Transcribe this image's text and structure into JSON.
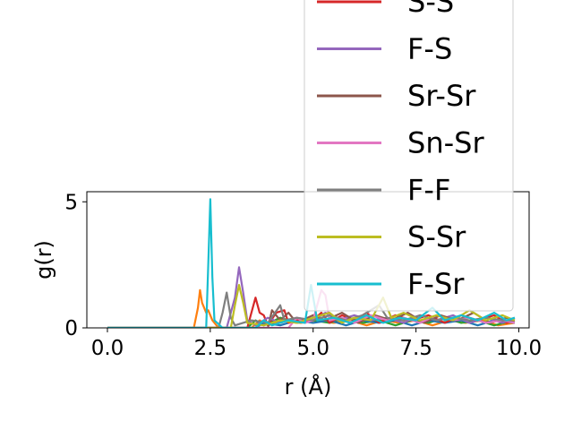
{
  "chart_data": {
    "type": "line",
    "xlabel": "r (Å)",
    "ylabel": "g(r)",
    "xlim": [
      -0.5,
      10.25
    ],
    "ylim": [
      0,
      5.4
    ],
    "xticks": [
      0.0,
      2.5,
      5.0,
      7.5,
      10.0
    ],
    "xtick_labels": [
      "0.0",
      "2.5",
      "5.0",
      "7.5",
      "10.0"
    ],
    "yticks": [
      0,
      5
    ],
    "ytick_labels": [
      "0",
      "5"
    ],
    "legend_position": "upper-right",
    "series": [
      {
        "name": "S-S",
        "color": "#d62728",
        "points": [
          [
            0,
            0
          ],
          [
            3.4,
            0
          ],
          [
            3.6,
            1.2
          ],
          [
            3.7,
            0.6
          ],
          [
            3.8,
            0.5
          ],
          [
            3.9,
            0.1
          ],
          [
            4.1,
            0.6
          ],
          [
            4.3,
            0.7
          ],
          [
            4.4,
            0.2
          ],
          [
            4.6,
            0.3
          ],
          [
            5.0,
            0.3
          ],
          [
            5.2,
            0.6
          ],
          [
            5.4,
            0.2
          ],
          [
            5.7,
            0.5
          ],
          [
            6.0,
            0.3
          ],
          [
            6.3,
            0.6
          ],
          [
            6.6,
            0.2
          ],
          [
            7.0,
            0.5
          ],
          [
            7.4,
            0.3
          ],
          [
            7.8,
            0.5
          ],
          [
            8.2,
            0.2
          ],
          [
            8.6,
            0.5
          ],
          [
            9.0,
            0.3
          ],
          [
            9.4,
            0.5
          ],
          [
            9.7,
            0.2
          ],
          [
            9.9,
            0.3
          ]
        ]
      },
      {
        "name": "F-S",
        "color": "#9467bd",
        "points": [
          [
            0,
            0
          ],
          [
            2.9,
            0
          ],
          [
            3.0,
            0.6
          ],
          [
            3.1,
            1.2
          ],
          [
            3.2,
            2.4
          ],
          [
            3.3,
            1.4
          ],
          [
            3.4,
            0.3
          ],
          [
            3.6,
            0.1
          ],
          [
            3.9,
            0.4
          ],
          [
            4.2,
            0.2
          ],
          [
            4.6,
            0.4
          ],
          [
            5.0,
            0.3
          ],
          [
            5.3,
            0.6
          ],
          [
            5.6,
            0.3
          ],
          [
            6.0,
            0.5
          ],
          [
            6.4,
            0.3
          ],
          [
            6.8,
            0.4
          ],
          [
            7.2,
            0.2
          ],
          [
            7.6,
            0.5
          ],
          [
            8.0,
            0.3
          ],
          [
            8.4,
            0.5
          ],
          [
            8.8,
            0.2
          ],
          [
            9.2,
            0.4
          ],
          [
            9.6,
            0.2
          ],
          [
            9.9,
            0.4
          ]
        ]
      },
      {
        "name": "Sr-Sr",
        "color": "#8c564b",
        "points": [
          [
            0,
            0
          ],
          [
            3.9,
            0
          ],
          [
            4.0,
            0.7
          ],
          [
            4.1,
            0.5
          ],
          [
            4.2,
            0.3
          ],
          [
            4.4,
            0.6
          ],
          [
            4.6,
            0.2
          ],
          [
            5.0,
            0.5
          ],
          [
            5.3,
            0.3
          ],
          [
            5.7,
            0.6
          ],
          [
            6.1,
            0.2
          ],
          [
            6.5,
            0.5
          ],
          [
            6.9,
            0.3
          ],
          [
            7.3,
            0.6
          ],
          [
            7.7,
            0.2
          ],
          [
            8.1,
            0.5
          ],
          [
            8.5,
            0.3
          ],
          [
            8.9,
            0.6
          ],
          [
            9.3,
            0.2
          ],
          [
            9.7,
            0.4
          ],
          [
            9.9,
            0.3
          ]
        ]
      },
      {
        "name": "Sn-Sr",
        "color": "#e377c2",
        "points": [
          [
            0,
            0
          ],
          [
            4.4,
            0
          ],
          [
            4.6,
            0.4
          ],
          [
            4.8,
            0.2
          ],
          [
            5.0,
            0.3
          ],
          [
            5.2,
            1.5
          ],
          [
            5.3,
            1.3
          ],
          [
            5.4,
            0.3
          ],
          [
            5.7,
            0.4
          ],
          [
            6.0,
            0.2
          ],
          [
            6.4,
            0.5
          ],
          [
            6.8,
            0.3
          ],
          [
            7.2,
            0.4
          ],
          [
            7.6,
            0.2
          ],
          [
            8.0,
            0.5
          ],
          [
            8.4,
            0.3
          ],
          [
            8.8,
            0.4
          ],
          [
            9.2,
            0.2
          ],
          [
            9.6,
            0.3
          ],
          [
            9.9,
            0.2
          ]
        ]
      },
      {
        "name": "F-F",
        "color": "#7f7f7f",
        "points": [
          [
            0,
            0
          ],
          [
            2.7,
            0
          ],
          [
            2.8,
            0.6
          ],
          [
            2.9,
            1.4
          ],
          [
            3.0,
            0.4
          ],
          [
            3.1,
            0.1
          ],
          [
            3.5,
            0.3
          ],
          [
            3.9,
            0.2
          ],
          [
            4.2,
            0.9
          ],
          [
            4.3,
            0.3
          ],
          [
            4.6,
            0.4
          ],
          [
            5.0,
            0.3
          ],
          [
            5.4,
            0.5
          ],
          [
            5.8,
            0.3
          ],
          [
            6.2,
            0.5
          ],
          [
            6.6,
            0.9
          ],
          [
            6.8,
            0.4
          ],
          [
            7.2,
            0.3
          ],
          [
            7.6,
            0.5
          ],
          [
            8.0,
            0.3
          ],
          [
            8.4,
            0.4
          ],
          [
            8.8,
            0.3
          ],
          [
            9.2,
            0.4
          ],
          [
            9.6,
            0.3
          ],
          [
            9.9,
            0.3
          ]
        ]
      },
      {
        "name": "S-Sr",
        "color": "#bcbd22",
        "points": [
          [
            0,
            0
          ],
          [
            3.0,
            0
          ],
          [
            3.1,
            0.9
          ],
          [
            3.2,
            1.7
          ],
          [
            3.3,
            1.0
          ],
          [
            3.4,
            0.2
          ],
          [
            3.8,
            0.1
          ],
          [
            4.2,
            0.3
          ],
          [
            4.6,
            0.2
          ],
          [
            5.0,
            0.4
          ],
          [
            5.4,
            0.6
          ],
          [
            5.7,
            0.2
          ],
          [
            6.0,
            0.4
          ],
          [
            6.4,
            0.3
          ],
          [
            6.7,
            1.2
          ],
          [
            6.9,
            0.4
          ],
          [
            7.2,
            0.6
          ],
          [
            7.6,
            0.3
          ],
          [
            8.0,
            0.5
          ],
          [
            8.4,
            0.3
          ],
          [
            8.8,
            0.7
          ],
          [
            9.2,
            0.3
          ],
          [
            9.6,
            0.5
          ],
          [
            9.9,
            0.3
          ]
        ]
      },
      {
        "name": "F-Sr",
        "color": "#17becf",
        "points": [
          [
            0,
            0
          ],
          [
            2.4,
            0
          ],
          [
            2.45,
            2.5
          ],
          [
            2.5,
            5.1
          ],
          [
            2.55,
            2.0
          ],
          [
            2.6,
            0.3
          ],
          [
            2.8,
            0
          ],
          [
            3.6,
            0
          ],
          [
            3.8,
            0.3
          ],
          [
            4.0,
            0.1
          ],
          [
            4.4,
            0.3
          ],
          [
            4.8,
            0.2
          ],
          [
            4.95,
            1.7
          ],
          [
            5.1,
            0.3
          ],
          [
            5.5,
            0.4
          ],
          [
            5.9,
            0.2
          ],
          [
            6.3,
            0.5
          ],
          [
            6.7,
            0.2
          ],
          [
            7.1,
            0.4
          ],
          [
            7.5,
            0.3
          ],
          [
            7.9,
            0.8
          ],
          [
            8.2,
            0.3
          ],
          [
            8.6,
            0.5
          ],
          [
            9.0,
            0.3
          ],
          [
            9.4,
            0.6
          ],
          [
            9.7,
            0.3
          ],
          [
            9.9,
            0.4
          ]
        ]
      },
      {
        "name": "",
        "color": "#ff7f0e",
        "points": [
          [
            0,
            0
          ],
          [
            2.1,
            0
          ],
          [
            2.2,
            0.8
          ],
          [
            2.25,
            1.5
          ],
          [
            2.3,
            1.0
          ],
          [
            2.4,
            0.6
          ],
          [
            2.45,
            0.7
          ],
          [
            2.55,
            0.3
          ],
          [
            2.7,
            0
          ],
          [
            3.5,
            0
          ],
          [
            3.7,
            0.3
          ],
          [
            3.9,
            0.1
          ],
          [
            4.3,
            0.3
          ],
          [
            4.7,
            0.2
          ],
          [
            5.1,
            0.3
          ],
          [
            5.5,
            0.2
          ],
          [
            5.9,
            0.3
          ],
          [
            6.3,
            0.1
          ],
          [
            6.7,
            0.3
          ],
          [
            7.1,
            0.2
          ],
          [
            7.5,
            0.3
          ],
          [
            7.9,
            0.1
          ],
          [
            8.3,
            0.3
          ],
          [
            8.7,
            0.2
          ],
          [
            9.1,
            0.3
          ],
          [
            9.5,
            0.1
          ],
          [
            9.9,
            0.2
          ]
        ]
      },
      {
        "name": "",
        "color": "#2ca02c",
        "points": [
          [
            0,
            0
          ],
          [
            3.4,
            0
          ],
          [
            3.6,
            0.3
          ],
          [
            3.8,
            0.1
          ],
          [
            4.2,
            0.4
          ],
          [
            4.6,
            0.2
          ],
          [
            5.0,
            0.3
          ],
          [
            5.4,
            0.2
          ],
          [
            5.8,
            0.4
          ],
          [
            6.2,
            0.2
          ],
          [
            6.6,
            0.3
          ],
          [
            7.0,
            0.1
          ],
          [
            7.4,
            0.3
          ],
          [
            7.8,
            0.2
          ],
          [
            8.2,
            0.4
          ],
          [
            8.6,
            0.2
          ],
          [
            9.0,
            0.3
          ],
          [
            9.4,
            0.1
          ],
          [
            9.9,
            0.3
          ]
        ]
      },
      {
        "name": "",
        "color": "#1f77b4",
        "points": [
          [
            0,
            0
          ],
          [
            3.6,
            0
          ],
          [
            3.8,
            0.2
          ],
          [
            4.2,
            0.1
          ],
          [
            4.6,
            0.3
          ],
          [
            5.0,
            0.2
          ],
          [
            5.4,
            0.3
          ],
          [
            5.8,
            0.1
          ],
          [
            6.2,
            0.3
          ],
          [
            6.6,
            0.2
          ],
          [
            7.0,
            0.3
          ],
          [
            7.4,
            0.1
          ],
          [
            7.8,
            0.3
          ],
          [
            8.2,
            0.2
          ],
          [
            8.6,
            0.3
          ],
          [
            9.0,
            0.1
          ],
          [
            9.4,
            0.3
          ],
          [
            9.9,
            0.2
          ]
        ]
      }
    ]
  }
}
